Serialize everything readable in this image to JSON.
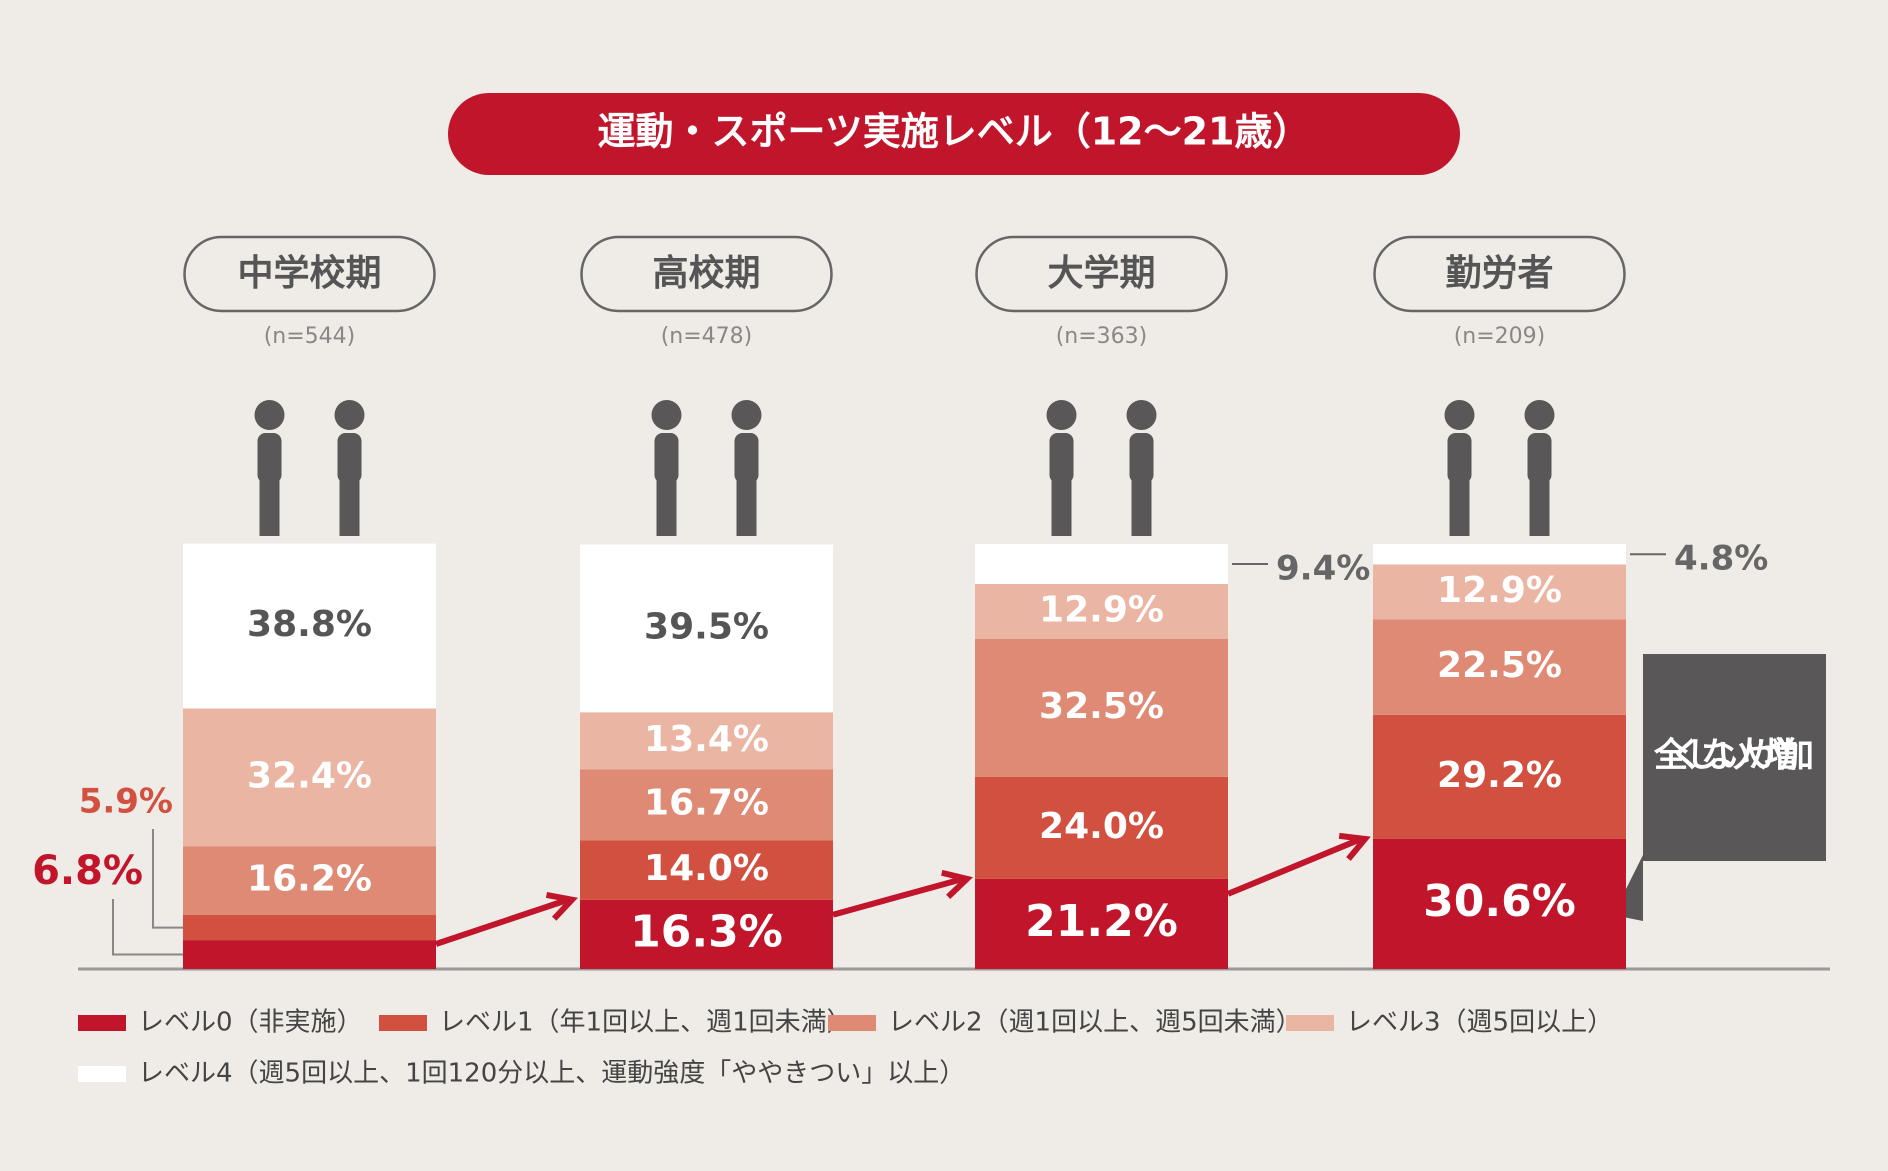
{
  "chart_data": {
    "type": "stacked_bar",
    "title": "運動・スポーツ実施レベル（12〜21歳）",
    "categories": [
      "中学校期",
      "高校期",
      "大学期",
      "勤労者"
    ],
    "sample_sizes": [
      "(n=544)",
      "(n=478)",
      "(n=363)",
      "(n=209)"
    ],
    "series": [
      {
        "name": "レベル0（非実施）",
        "color": "#c0152a",
        "values": [
          6.8,
          16.3,
          21.2,
          30.6
        ],
        "value_labels": [
          "6.8%",
          "16.3%",
          "21.2%",
          "30.6%"
        ]
      },
      {
        "name": "レベル1（年1回以上、週1回未満）",
        "color": "#d2503f",
        "values": [
          5.9,
          14.0,
          24.0,
          29.2
        ],
        "value_labels": [
          "5.9%",
          "14.0%",
          "24.0%",
          "29.2%"
        ]
      },
      {
        "name": "レベル2（週1回以上、週5回未満）",
        "color": "#df8a74",
        "values": [
          16.2,
          16.7,
          32.5,
          22.5
        ],
        "value_labels": [
          "16.2%",
          "16.7%",
          "32.5%",
          "22.5%"
        ]
      },
      {
        "name": "レベル3（週5回以上）",
        "color": "#ebb5a3",
        "values": [
          32.4,
          13.4,
          12.9,
          12.9
        ],
        "value_labels": [
          "32.4%",
          "13.4%",
          "12.9%",
          "12.9%"
        ]
      },
      {
        "name": "レベル4（週5回以上、1回120分以上、運動強度「ややきつい」以上）",
        "color": "#ffffff",
        "values": [
          38.8,
          39.5,
          9.4,
          4.8
        ],
        "value_labels": [
          "38.8%",
          "39.5%",
          "9.4%",
          "4.8%"
        ]
      }
    ],
    "annotation": "全くしない人が増加"
  }
}
